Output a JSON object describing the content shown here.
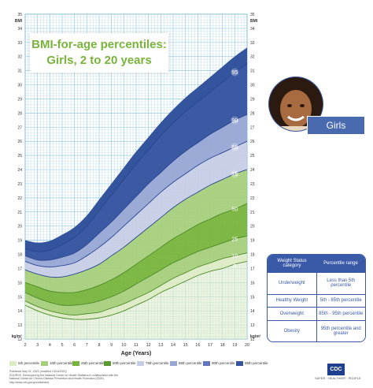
{
  "title": {
    "line1": "BMI-for-age percentiles:",
    "line2": "Girls, 2 to 20 years"
  },
  "unit_label": "BMI",
  "bottom_unit": "kg/m²",
  "photo_label": "Girls",
  "colors": {
    "green_light": "#dcebc4",
    "green_mid": "#a7cf7b",
    "green_dark": "#78b43c",
    "green_deep": "#5a9a32",
    "blue_light": "#c6cde6",
    "blue_mid": "#97a6d4",
    "blue_dark": "#5f75bd",
    "blue_deep": "#35549e",
    "grid": "#7fc0da",
    "axis_blue": "#3a5aa8"
  },
  "chart_data": {
    "type": "area",
    "title": "BMI-for-age percentiles: Girls, 2 to 20 years",
    "xlabel": "Age (Years)",
    "ylabel": "BMI",
    "xlim": [
      2,
      20
    ],
    "ylim": [
      12,
      35
    ],
    "x_ticks": [
      2,
      3,
      4,
      5,
      6,
      7,
      8,
      9,
      10,
      11,
      12,
      13,
      14,
      15,
      16,
      17,
      18,
      19,
      20
    ],
    "y_ticks": [
      12,
      13,
      14,
      15,
      16,
      17,
      18,
      19,
      20,
      21,
      22,
      23,
      24,
      25,
      26,
      27,
      28,
      29,
      30,
      31,
      32,
      33,
      34,
      35
    ],
    "x": [
      2,
      3,
      4,
      5,
      6,
      7,
      8,
      9,
      10,
      11,
      12,
      13,
      14,
      15,
      16,
      17,
      18,
      19,
      20
    ],
    "series": [
      {
        "name": "5th percentile",
        "values": [
          14.4,
          14.0,
          13.7,
          13.5,
          13.4,
          13.4,
          13.5,
          13.7,
          14.0,
          14.4,
          14.8,
          15.3,
          15.7,
          16.1,
          16.5,
          16.8,
          17.0,
          17.3,
          17.5
        ]
      },
      {
        "name": "10th percentile",
        "values": [
          14.7,
          14.3,
          14.0,
          13.8,
          13.7,
          13.8,
          13.9,
          14.2,
          14.5,
          14.9,
          15.3,
          15.8,
          16.3,
          16.7,
          17.1,
          17.4,
          17.7,
          17.9,
          18.1
        ]
      },
      {
        "name": "25th percentile",
        "values": [
          15.3,
          14.9,
          14.6,
          14.4,
          14.4,
          14.5,
          14.7,
          15.0,
          15.4,
          15.9,
          16.4,
          16.9,
          17.4,
          17.8,
          18.2,
          18.5,
          18.8,
          19.1,
          19.3
        ]
      },
      {
        "name": "50th percentile",
        "values": [
          16.0,
          15.7,
          15.4,
          15.3,
          15.3,
          15.5,
          15.8,
          16.2,
          16.7,
          17.3,
          17.9,
          18.5,
          19.1,
          19.6,
          20.1,
          20.5,
          20.9,
          21.2,
          21.6
        ]
      },
      {
        "name": "75th percentile",
        "values": [
          16.9,
          16.6,
          16.4,
          16.4,
          16.6,
          16.9,
          17.3,
          17.9,
          18.5,
          19.2,
          19.9,
          20.6,
          21.3,
          21.9,
          22.4,
          22.9,
          23.3,
          23.7,
          24.0
        ]
      },
      {
        "name": "85th percentile",
        "values": [
          17.5,
          17.2,
          17.1,
          17.2,
          17.4,
          17.9,
          18.5,
          19.2,
          20.0,
          20.8,
          21.6,
          22.4,
          23.1,
          23.7,
          24.3,
          24.8,
          25.2,
          25.6,
          26.0
        ]
      },
      {
        "name": "90th percentile",
        "values": [
          17.9,
          17.6,
          17.6,
          17.8,
          18.1,
          18.7,
          19.5,
          20.3,
          21.2,
          22.1,
          23.0,
          23.8,
          24.6,
          25.3,
          25.9,
          26.5,
          27.0,
          27.5,
          27.9
        ]
      },
      {
        "name": "95th percentile",
        "values": [
          18.4,
          18.2,
          18.3,
          18.7,
          19.2,
          20.0,
          21.1,
          22.2,
          23.3,
          24.4,
          25.4,
          26.4,
          27.3,
          28.1,
          28.8,
          29.5,
          30.2,
          30.9,
          31.5
        ]
      }
    ],
    "percentile_labels": [
      "5",
      "10",
      "25",
      "50",
      "75",
      "85",
      "90",
      "95"
    ],
    "legend": [
      "5th percentile",
      "10th percentile",
      "25th percentile",
      "50th percentile",
      "75th percentile",
      "85th percentile",
      "90th percentile",
      "95th percentile"
    ],
    "legend_position": "bottom",
    "grid": true
  },
  "status_table": {
    "headers": [
      "Weight Status category",
      "Percentile range"
    ],
    "rows": [
      [
        "Underweight",
        "Less than 5th percentile"
      ],
      [
        "Healthy Weight",
        "5th - 85th percentile"
      ],
      [
        "Overweight",
        "85th - 95th percentile"
      ],
      [
        "Obesity",
        "95th percentile and greater"
      ]
    ]
  },
  "footer": {
    "line1": "Published May 31, 2022 (modified 10/16/2022)",
    "line2": "SOURCE: Developed by the National Center for Health Statistics in collaboration with the",
    "line3": "National Center for Chronic Disease Prevention and Health Promotion (2000).",
    "line4": "http://www.cdc.gov/growthcharts",
    "logo": "CDC",
    "tagline": "SAFER · HEALTHIER · PEOPLE"
  }
}
